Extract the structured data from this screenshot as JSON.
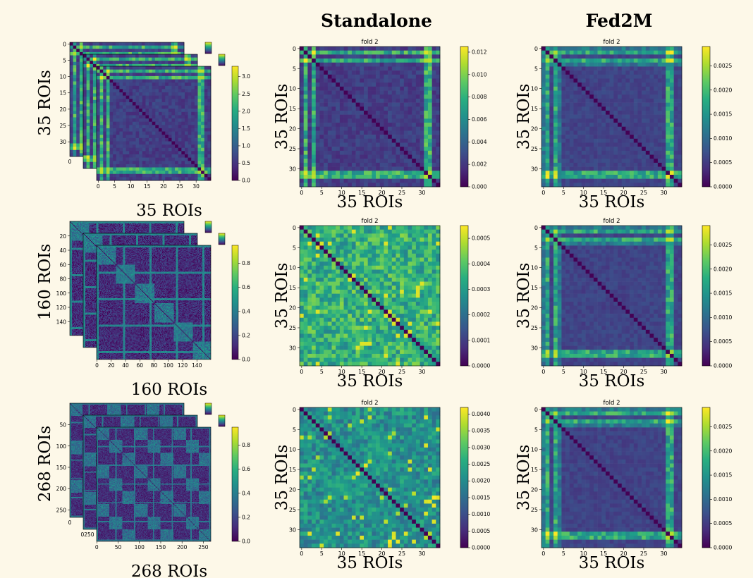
{
  "figure": {
    "column_titles": [
      "Standalone",
      "Fed2M"
    ],
    "fold_label": "fold 2"
  },
  "chart_data": [
    {
      "type": "heatmap",
      "row": 0,
      "col": 0,
      "stack": true,
      "ylabel": "35 ROIs",
      "xlabel": "35 ROIs",
      "n": 35,
      "cmax": 3.3,
      "colorbar_ticks": [
        0.0,
        0.5,
        1.0,
        1.5,
        2.0,
        2.5,
        3.0
      ],
      "x_ticks": [
        0,
        5,
        10,
        15,
        20,
        25,
        30
      ],
      "y_ticks": [
        0,
        5,
        10,
        15,
        20,
        25,
        30
      ],
      "back_y_ticks": [
        0,
        5,
        10,
        15,
        20,
        25,
        30
      ],
      "back_x_ticks": [
        0
      ],
      "pattern": "dk"
    },
    {
      "type": "heatmap",
      "row": 0,
      "col": 1,
      "title": "fold 2",
      "ylabel": "35 ROIs",
      "xlabel": "35 ROIs",
      "n": 35,
      "cmax": 0.0125,
      "colorbar_ticks": [
        "0.000",
        "0.002",
        "0.004",
        "0.006",
        "0.008",
        "0.010",
        "0.012"
      ],
      "colorbar_values": [
        0,
        0.002,
        0.004,
        0.006,
        0.008,
        0.01,
        0.012
      ],
      "x_ticks": [
        0,
        5,
        10,
        15,
        20,
        25,
        30
      ],
      "y_ticks": [
        0,
        5,
        10,
        15,
        20,
        25,
        30
      ],
      "pattern": "dk"
    },
    {
      "type": "heatmap",
      "row": 0,
      "col": 2,
      "title": "fold 2",
      "ylabel": "35 ROIs",
      "xlabel": "35 ROIs",
      "n": 35,
      "cmax": 0.0029,
      "colorbar_ticks": [
        "0.0000",
        "0.0005",
        "0.0010",
        "0.0015",
        "0.0020",
        "0.0025"
      ],
      "colorbar_values": [
        0,
        0.0005,
        0.001,
        0.0015,
        0.002,
        0.0025
      ],
      "x_ticks": [
        0,
        5,
        10,
        15,
        20,
        25,
        30
      ],
      "y_ticks": [
        0,
        5,
        10,
        15,
        20,
        25,
        30
      ],
      "pattern": "fed"
    },
    {
      "type": "heatmap",
      "row": 1,
      "col": 0,
      "stack": true,
      "ylabel": "160 ROIs",
      "xlabel": "160 ROIs",
      "n": 160,
      "cmax": 0.95,
      "colorbar_ticks": [
        0.0,
        0.2,
        0.4,
        0.6,
        0.8
      ],
      "x_ticks": [
        0,
        20,
        40,
        60,
        80,
        100,
        120,
        140
      ],
      "y_ticks": [
        20,
        40,
        60,
        80,
        100,
        120,
        140
      ],
      "pattern": "dos"
    },
    {
      "type": "heatmap",
      "row": 1,
      "col": 1,
      "title": "fold 2",
      "ylabel": "35 ROIs",
      "xlabel": "35 ROIs",
      "n": 35,
      "cmax": 0.00055,
      "colorbar_ticks": [
        "0.0000",
        "0.0001",
        "0.0002",
        "0.0003",
        "0.0004",
        "0.0005"
      ],
      "colorbar_values": [
        0,
        0.0001,
        0.0002,
        0.0003,
        0.0004,
        0.0005
      ],
      "x_ticks": [
        0,
        5,
        10,
        15,
        20,
        25,
        30
      ],
      "y_ticks": [
        0,
        5,
        10,
        15,
        20,
        25,
        30
      ],
      "pattern": "noise"
    },
    {
      "type": "heatmap",
      "row": 1,
      "col": 2,
      "title": "fold 2",
      "ylabel": "35 ROIs",
      "xlabel": "35 ROIs",
      "n": 35,
      "cmax": 0.0029,
      "colorbar_ticks": [
        "0.0000",
        "0.0005",
        "0.0010",
        "0.0015",
        "0.0020",
        "0.0025"
      ],
      "colorbar_values": [
        0,
        0.0005,
        0.001,
        0.0015,
        0.002,
        0.0025
      ],
      "x_ticks": [
        0,
        5,
        10,
        15,
        20,
        25,
        30
      ],
      "y_ticks": [
        0,
        5,
        10,
        15,
        20,
        25,
        30
      ],
      "pattern": "fed"
    },
    {
      "type": "heatmap",
      "row": 2,
      "col": 0,
      "stack": true,
      "ylabel": "268 ROIs",
      "xlabel": "268 ROIs",
      "n": 268,
      "cmax": 0.95,
      "colorbar_ticks": [
        0.0,
        0.2,
        0.4,
        0.6,
        0.8
      ],
      "x_ticks": [
        0,
        50,
        100,
        150,
        200,
        250
      ],
      "y_ticks": [
        50,
        100,
        150,
        200,
        250
      ],
      "back_x_ticks": [
        "0",
        "0250"
      ],
      "back_y_ticks": [
        "0",
        "250"
      ],
      "pattern": "shen"
    },
    {
      "type": "heatmap",
      "row": 2,
      "col": 1,
      "title": "fold 2",
      "ylabel": "35 ROIs",
      "xlabel": "35 ROIs",
      "n": 35,
      "cmax": 0.0042,
      "colorbar_ticks": [
        "0.0000",
        "0.0005",
        "0.0010",
        "0.0015",
        "0.0020",
        "0.0025",
        "0.0030",
        "0.0035",
        "0.0040"
      ],
      "colorbar_values": [
        0,
        0.0005,
        0.001,
        0.0015,
        0.002,
        0.0025,
        0.003,
        0.0035,
        0.004
      ],
      "x_ticks": [
        0,
        5,
        10,
        15,
        20,
        25,
        30
      ],
      "y_ticks": [
        0,
        5,
        10,
        15,
        20,
        25,
        30
      ],
      "pattern": "noise2"
    },
    {
      "type": "heatmap",
      "row": 2,
      "col": 2,
      "title": "fold 2",
      "ylabel": "35 ROIs",
      "xlabel": "35 ROIs",
      "n": 35,
      "cmax": 0.0029,
      "colorbar_ticks": [
        "0.0000",
        "0.0005",
        "0.0010",
        "0.0015",
        "0.0020",
        "0.0025"
      ],
      "colorbar_values": [
        0,
        0.0005,
        0.001,
        0.0015,
        0.002,
        0.0025
      ],
      "x_ticks": [
        0,
        5,
        10,
        15,
        20,
        25,
        30
      ],
      "y_ticks": [
        0,
        5,
        10,
        15,
        20,
        25,
        30
      ],
      "pattern": "fed"
    }
  ]
}
